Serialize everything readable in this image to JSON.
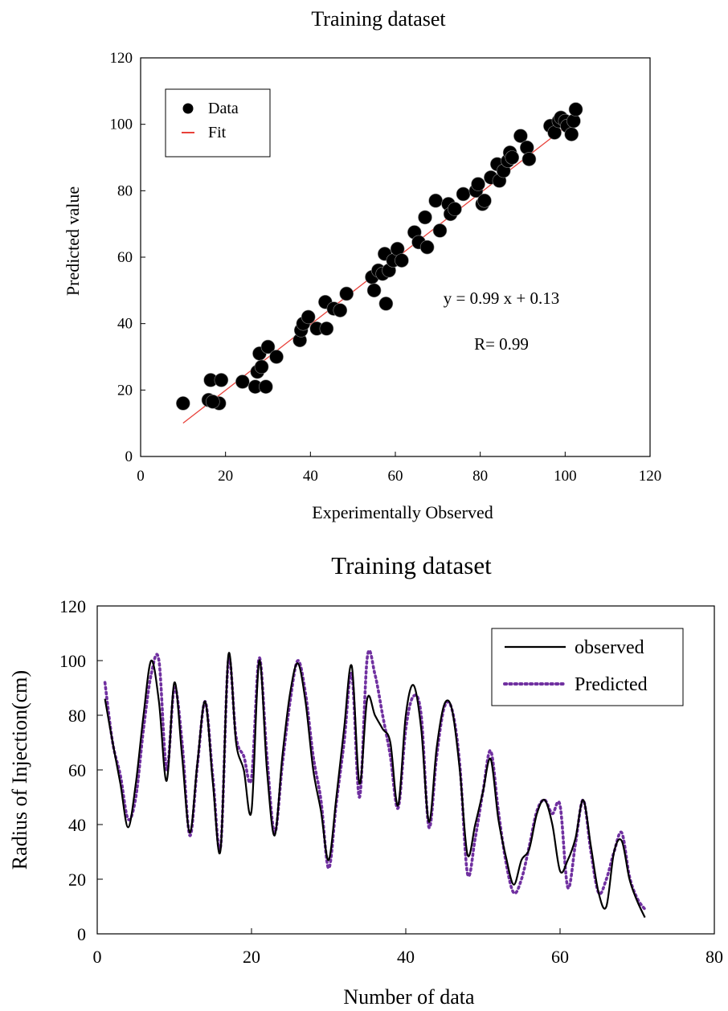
{
  "chart_data": [
    {
      "type": "scatter",
      "title": "Training dataset",
      "xlabel": "Experimentally Observed",
      "ylabel": "Predicted value",
      "xlim": [
        0,
        120
      ],
      "ylim": [
        0,
        120
      ],
      "xticks": [
        "0",
        "20",
        "40",
        "60",
        "80",
        "100",
        "120"
      ],
      "yticks": [
        "0",
        "20",
        "40",
        "60",
        "80",
        "100",
        "120"
      ],
      "grid": false,
      "legend_position": "top-left",
      "legend": {
        "data_label": "Data",
        "fit_label": "Fit"
      },
      "annotations": {
        "equation": "y = 0.99 x + 0.13",
        "r_value": "R= 0.99"
      },
      "fit": {
        "slope": 0.99,
        "intercept": 0.13,
        "x_range": [
          10,
          102
        ],
        "color": "#e8413a"
      },
      "marker_color": "#000000",
      "points": [
        [
          10,
          16
        ],
        [
          16,
          17
        ],
        [
          16.5,
          23
        ],
        [
          18.5,
          16
        ],
        [
          19,
          23
        ],
        [
          17,
          16.5
        ],
        [
          24,
          22.5
        ],
        [
          27,
          21
        ],
        [
          27.5,
          25.5
        ],
        [
          28,
          31
        ],
        [
          28.5,
          27
        ],
        [
          29.5,
          21
        ],
        [
          30,
          33
        ],
        [
          32,
          30
        ],
        [
          37.5,
          35
        ],
        [
          37.8,
          38
        ],
        [
          38.3,
          40
        ],
        [
          39.5,
          42
        ],
        [
          41.5,
          38.5
        ],
        [
          43.5,
          46.5
        ],
        [
          43.8,
          38.5
        ],
        [
          45.5,
          44.5
        ],
        [
          47,
          44
        ],
        [
          48.5,
          49
        ],
        [
          54.5,
          54
        ],
        [
          55,
          50
        ],
        [
          56,
          56
        ],
        [
          57,
          55
        ],
        [
          57.5,
          61
        ],
        [
          57.8,
          46
        ],
        [
          58.5,
          56
        ],
        [
          59.5,
          59
        ],
        [
          60.5,
          62.5
        ],
        [
          61.5,
          59
        ],
        [
          64.5,
          67.5
        ],
        [
          65.5,
          64.5
        ],
        [
          67,
          72
        ],
        [
          67.5,
          63
        ],
        [
          69.5,
          77
        ],
        [
          70.5,
          68
        ],
        [
          72.5,
          76
        ],
        [
          73,
          73
        ],
        [
          74,
          74.5
        ],
        [
          76,
          79
        ],
        [
          79,
          80
        ],
        [
          79.5,
          82
        ],
        [
          80.5,
          76
        ],
        [
          81,
          77
        ],
        [
          82.5,
          84
        ],
        [
          84,
          88
        ],
        [
          84.5,
          83
        ],
        [
          85.5,
          86
        ],
        [
          86.5,
          89
        ],
        [
          87,
          91.5
        ],
        [
          87.5,
          90
        ],
        [
          89.5,
          96.5
        ],
        [
          91,
          93
        ],
        [
          91.5,
          89.5
        ],
        [
          96.5,
          99.5
        ],
        [
          97.5,
          97.5
        ],
        [
          98.5,
          101
        ],
        [
          99,
          102
        ],
        [
          100,
          101
        ],
        [
          100.5,
          99.5
        ],
        [
          101.5,
          97
        ],
        [
          102,
          101
        ],
        [
          102.5,
          104.5
        ]
      ]
    },
    {
      "type": "line",
      "title": "Training dataset",
      "xlabel": "Number of data",
      "ylabel": "Radius of Injection(cm)",
      "xlim": [
        0,
        80
      ],
      "ylim": [
        0,
        120
      ],
      "xticks": [
        "0",
        "20",
        "40",
        "60",
        "80"
      ],
      "yticks": [
        "0",
        "20",
        "40",
        "60",
        "80",
        "100",
        "120"
      ],
      "grid": false,
      "legend_position": "top-right",
      "x": [
        1,
        2,
        3,
        4,
        5,
        6,
        7,
        8,
        9,
        10,
        11,
        12,
        13,
        14,
        15,
        16,
        17,
        18,
        19,
        20,
        21,
        22,
        23,
        24,
        25,
        26,
        27,
        28,
        29,
        30,
        31,
        32,
        33,
        34,
        35,
        36,
        37,
        38,
        39,
        40,
        41,
        42,
        43,
        44,
        45,
        46,
        47,
        48,
        49,
        50,
        51,
        52,
        53,
        54,
        55,
        56,
        57,
        58,
        59,
        60,
        61,
        62,
        63,
        64,
        65,
        66,
        67,
        68,
        69,
        70,
        71
      ],
      "series": [
        {
          "name": "observed",
          "color": "#000000",
          "style": "solid",
          "values": [
            86,
            70,
            55,
            39,
            55,
            80,
            100,
            85,
            56,
            92,
            65,
            37,
            63,
            85,
            55,
            31,
            102,
            70,
            60,
            45,
            100,
            60,
            36,
            65,
            88,
            99,
            85,
            60,
            45,
            27,
            50,
            75,
            98,
            55,
            86,
            80,
            75,
            70,
            47,
            80,
            91,
            75,
            41,
            68,
            84,
            82,
            60,
            29,
            40,
            52,
            64,
            42,
            28,
            18,
            27,
            31,
            44,
            49,
            40,
            23,
            27,
            35,
            49,
            32,
            15,
            10,
            30,
            34,
            20,
            12,
            6
          ]
        },
        {
          "name": "Predicted",
          "color": "#7030a0",
          "style": "dotted",
          "values": [
            92,
            70,
            58,
            42,
            50,
            75,
            95,
            100,
            60,
            90,
            70,
            36,
            62,
            85,
            57,
            32,
            100,
            72,
            65,
            57,
            101,
            65,
            37,
            62,
            85,
            100,
            88,
            65,
            49,
            24,
            48,
            70,
            95,
            50,
            101,
            95,
            80,
            65,
            46,
            75,
            87,
            80,
            39,
            65,
            83,
            82,
            62,
            22,
            35,
            52,
            67,
            45,
            26,
            15,
            20,
            32,
            45,
            49,
            44,
            47,
            17,
            33,
            49,
            30,
            15,
            20,
            30,
            37,
            21,
            13,
            9
          ]
        }
      ]
    }
  ]
}
